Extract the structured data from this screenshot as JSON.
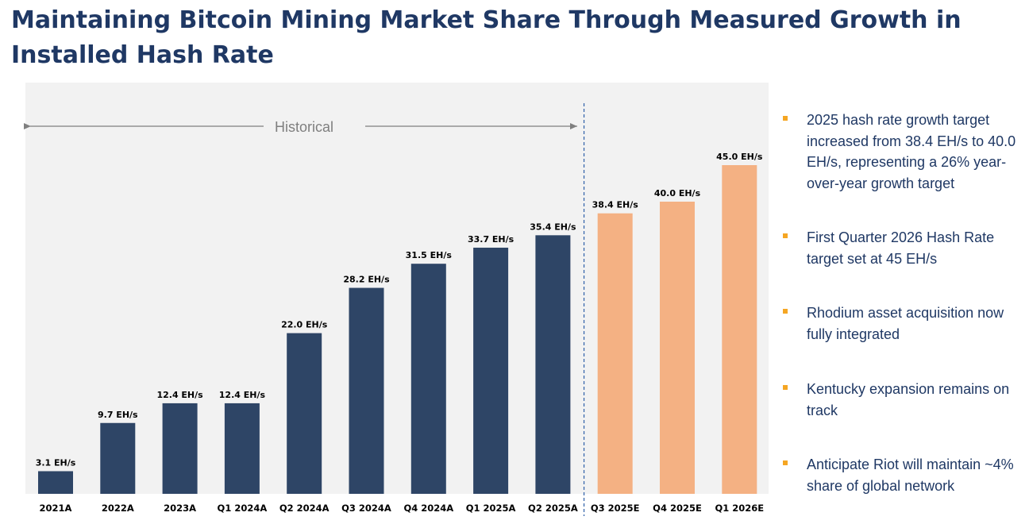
{
  "title": "Maintaining Bitcoin Mining Market Share Through Measured Growth in Installed Hash Rate",
  "chart_data": {
    "type": "bar",
    "categories": [
      "2021A",
      "2022A",
      "2023A",
      "Q1 2024A",
      "Q2 2024A",
      "Q3 2024A",
      "Q4 2024A",
      "Q1 2025A",
      "Q2 2025A",
      "Q3 2025E",
      "Q4 2025E",
      "Q1 2026E"
    ],
    "values": [
      3.1,
      9.7,
      12.4,
      12.4,
      22.0,
      28.2,
      31.5,
      33.7,
      35.4,
      38.4,
      40.0,
      45.0
    ],
    "data_labels": [
      "3.1 EH/s",
      "9.7 EH/s",
      "12.4 EH/s",
      "12.4 EH/s",
      "22.0 EH/s",
      "28.2 EH/s",
      "31.5 EH/s",
      "33.7 EH/s",
      "35.4 EH/s",
      "38.4 EH/s",
      "40.0 EH/s",
      "45.0 EH/s"
    ],
    "bar_status": [
      "actual",
      "actual",
      "actual",
      "actual",
      "actual",
      "actual",
      "actual",
      "actual",
      "actual",
      "estimate",
      "estimate",
      "estimate"
    ],
    "ylim": [
      0,
      50
    ],
    "grid": false,
    "annotation": "Historical",
    "colors": {
      "actual": "#2e4566",
      "estimate": "#f4b183",
      "background": "#f2f2f2",
      "divider": "#2e5fa8"
    }
  },
  "bullets": [
    "2025 hash rate growth target increased from 38.4 EH/s to 40.0 EH/s, representing a 26% year-over-year growth target",
    "First Quarter 2026 Hash Rate target set at 45 EH/s",
    "Rhodium asset acquisition now fully integrated",
    "Kentucky expansion remains on track",
    "Anticipate Riot will maintain ~4% share of global network"
  ],
  "colors": {
    "title": "#1f3864",
    "bullet_marker": "#f5a623",
    "bullet_text": "#1f3864"
  }
}
